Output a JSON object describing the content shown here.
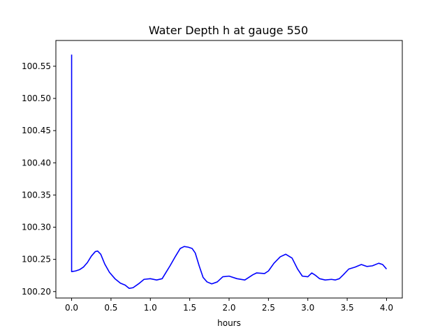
{
  "chart_data": {
    "type": "line",
    "title": "Water Depth h at gauge 550",
    "xlabel": "hours",
    "ylabel": "",
    "xlim": [
      -0.2,
      4.2
    ],
    "ylim": [
      100.19,
      100.59
    ],
    "xticks": [
      0.0,
      0.5,
      1.0,
      1.5,
      2.0,
      2.5,
      3.0,
      3.5,
      4.0
    ],
    "xtick_labels": [
      "0.0",
      "0.5",
      "1.0",
      "1.5",
      "2.0",
      "2.5",
      "3.0",
      "3.5",
      "4.0"
    ],
    "yticks": [
      100.2,
      100.25,
      100.3,
      100.35,
      100.4,
      100.45,
      100.5,
      100.55
    ],
    "ytick_labels": [
      "100.20",
      "100.25",
      "100.30",
      "100.35",
      "100.40",
      "100.45",
      "100.50",
      "100.55"
    ],
    "grid": false,
    "series": [
      {
        "color": "#0000ff",
        "x": [
          0.0,
          0.0,
          0.0,
          0.05,
          0.1,
          0.15,
          0.2,
          0.25,
          0.3,
          0.33,
          0.37,
          0.42,
          0.48,
          0.55,
          0.62,
          0.68,
          0.73,
          0.78,
          0.85,
          0.92,
          1.0,
          1.08,
          1.15,
          1.2,
          1.25,
          1.32,
          1.38,
          1.43,
          1.48,
          1.53,
          1.57,
          1.62,
          1.67,
          1.72,
          1.78,
          1.85,
          1.92,
          2.0,
          2.1,
          2.2,
          2.3,
          2.35,
          2.45,
          2.5,
          2.57,
          2.65,
          2.72,
          2.8,
          2.87,
          2.93,
          3.0,
          3.05,
          3.1,
          3.15,
          3.22,
          3.3,
          3.35,
          3.4,
          3.45,
          3.52,
          3.6,
          3.68,
          3.75,
          3.82,
          3.9,
          3.95,
          4.0
        ],
        "y": [
          100.568,
          100.232,
          100.231,
          100.232,
          100.234,
          100.238,
          100.245,
          100.255,
          100.262,
          100.263,
          100.258,
          100.243,
          100.23,
          100.22,
          100.213,
          100.21,
          100.205,
          100.206,
          100.212,
          100.219,
          100.22,
          100.218,
          100.22,
          100.23,
          100.24,
          100.255,
          100.267,
          100.27,
          100.269,
          100.267,
          100.26,
          100.24,
          100.222,
          100.215,
          100.212,
          100.215,
          100.223,
          100.224,
          100.22,
          100.218,
          100.226,
          100.229,
          100.228,
          100.232,
          100.244,
          100.254,
          100.258,
          100.252,
          100.235,
          100.224,
          100.223,
          100.229,
          100.225,
          100.22,
          100.218,
          100.219,
          100.218,
          100.22,
          100.226,
          100.235,
          100.238,
          100.242,
          100.239,
          100.24,
          100.244,
          100.242,
          100.235
        ]
      }
    ]
  }
}
